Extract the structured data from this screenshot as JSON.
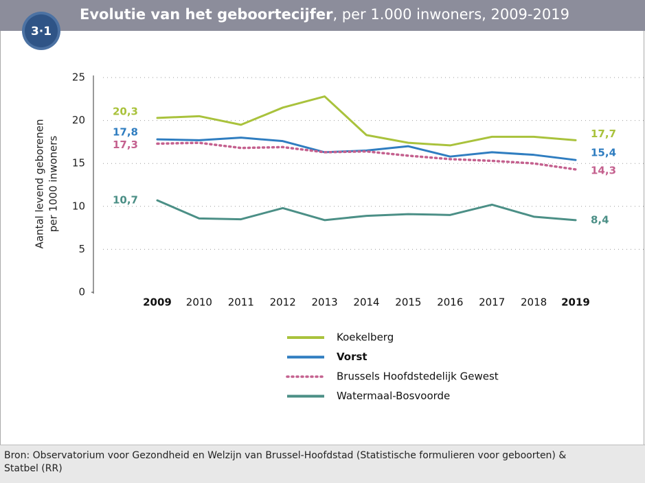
{
  "badge": "3·1",
  "chart_data": {
    "type": "line",
    "title": "Evolutie van het geboortecijfer",
    "subtitle": ", per 1.000 inwoners, 2009-2019",
    "y_label": [
      "Aantal levend geborenen",
      "per 1000 inwoners"
    ],
    "categories": [
      "2009",
      "2010",
      "2011",
      "2012",
      "2013",
      "2014",
      "2015",
      "2016",
      "2017",
      "2018",
      "2019"
    ],
    "ylim": [
      0,
      25
    ],
    "yticks": [
      0,
      5,
      10,
      15,
      20,
      25
    ],
    "grid": true,
    "series": [
      {
        "name": "Koekelberg",
        "color": "#a9c23c",
        "dash": false,
        "values": [
          20.3,
          20.5,
          19.5,
          21.5,
          22.8,
          18.3,
          17.4,
          17.1,
          18.1,
          18.1,
          17.7
        ],
        "value_labels": [
          "20,3",
          null,
          null,
          null,
          null,
          null,
          null,
          null,
          null,
          null,
          "17,7"
        ]
      },
      {
        "name": "Vorst",
        "color": "#2f7dc0",
        "dash": false,
        "values": [
          17.8,
          17.7,
          18.0,
          17.6,
          16.3,
          16.5,
          17.0,
          15.8,
          16.3,
          16.0,
          15.4
        ],
        "value_labels": [
          "17,8",
          null,
          null,
          null,
          null,
          null,
          null,
          null,
          null,
          null,
          "15,4"
        ]
      },
      {
        "name": "Brussels Hoofdstedelijk Gewest",
        "color": "#c4608e",
        "dash": true,
        "values": [
          17.3,
          17.4,
          16.8,
          16.9,
          16.3,
          16.4,
          15.9,
          15.5,
          15.3,
          15.0,
          14.3
        ],
        "value_labels": [
          "17,3",
          null,
          null,
          null,
          null,
          null,
          null,
          null,
          null,
          null,
          "14,3"
        ]
      },
      {
        "name": "Watermaal-Bosvoorde",
        "color": "#4b8f86",
        "dash": false,
        "values": [
          10.7,
          8.6,
          8.5,
          9.8,
          8.4,
          8.9,
          9.1,
          9.0,
          10.2,
          8.8,
          8.4
        ],
        "value_labels": [
          "10,7",
          null,
          null,
          null,
          null,
          null,
          null,
          null,
          null,
          null,
          "8,4"
        ]
      }
    ]
  },
  "footer": [
    "Bron: Observatorium voor Gezondheid en Welzijn van Brussel-Hoofdstad (Statistische formulieren voor geboorten) &",
    "Statbel (RR)"
  ]
}
